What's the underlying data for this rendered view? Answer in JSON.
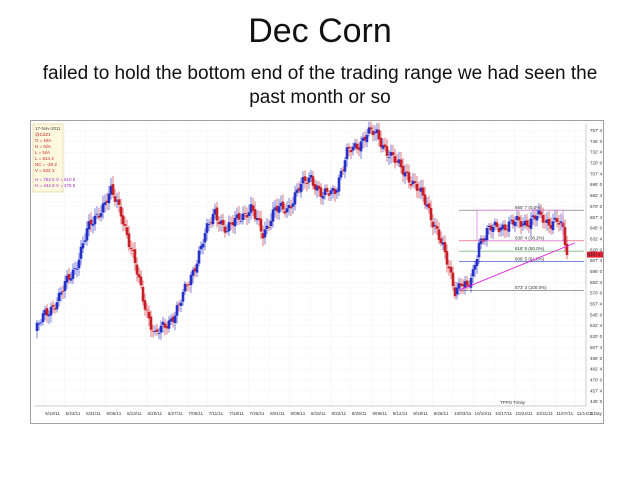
{
  "slide": {
    "title": "Dec Corn",
    "subtitle": "failed to hold the bottom end of the trading range we had seen the past month or so"
  },
  "colors": {
    "up": "#2430c8",
    "down": "#c81e28",
    "range_box": "#d060d0",
    "trendline": "#e020e0",
    "fib_line": "#e04060",
    "grid": "#d8d8d8",
    "price_tag": "#e02030"
  },
  "info_box": {
    "lines": [
      "17-Nov-2011",
      "@C2Z1",
      "O = N/A",
      "H = N/A",
      "L = N/A",
      "L = 614 4",
      "NC = -20 2",
      "V = 522 1"
    ],
    "lines2": [
      "H = 763 5  V = 610 5",
      "H = 444 9  V = 476 5"
    ]
  },
  "fib_labels": [
    "665' 7 (0.0%)",
    "630' 4 (38.2%)",
    "618' 5 (50.0%)",
    "606' 5 (61.8%)",
    "573' 3 (100.0%)"
  ],
  "price_tag": "614' 4",
  "footer_note": "TFPN Trinity",
  "chart_data": {
    "type": "candlestick",
    "symbol": "Dec Corn",
    "y_ticks": [
      "757' 4",
      "745' 0",
      "732' 4",
      "720' 0",
      "707' 4",
      "695' 0",
      "682' 4",
      "670' 0",
      "657' 4",
      "645' 0",
      "632' 4",
      "620' 0",
      "607' 4",
      "595' 0",
      "582' 4",
      "570' 0",
      "557' 4",
      "545' 0",
      "532' 4",
      "520' 0",
      "507' 4",
      "495' 0",
      "482' 4",
      "470' 0",
      "457' 4",
      "445' 0"
    ],
    "x_ticks": [
      "5/10/11",
      "5/23/11",
      "5/31/11",
      "6/06/11",
      "6/13/11",
      "6/20/11",
      "6/27/11",
      "7/05/11",
      "7/11/11",
      "7/18/11",
      "7/25/11",
      "8/01/11",
      "8/08/11",
      "8/15/11",
      "8/22/11",
      "8/29/11",
      "9/06/11",
      "9/12/11",
      "9/19/11",
      "9/26/11",
      "10/03/11",
      "10/10/11",
      "10/17/11",
      "10/24/11",
      "10/31/11",
      "11/07/11",
      "11/14/11"
    ],
    "y_range": [
      440,
      765
    ],
    "close_anchors": [
      [
        0,
        525
      ],
      [
        5,
        545
      ],
      [
        12,
        565
      ],
      [
        20,
        600
      ],
      [
        26,
        640
      ],
      [
        32,
        665
      ],
      [
        38,
        685
      ],
      [
        43,
        665
      ],
      [
        48,
        620
      ],
      [
        54,
        565
      ],
      [
        60,
        520
      ],
      [
        66,
        535
      ],
      [
        72,
        555
      ],
      [
        78,
        590
      ],
      [
        84,
        630
      ],
      [
        90,
        665
      ],
      [
        96,
        640
      ],
      [
        102,
        660
      ],
      [
        108,
        665
      ],
      [
        114,
        640
      ],
      [
        120,
        665
      ],
      [
        126,
        668
      ],
      [
        132,
        690
      ],
      [
        138,
        705
      ],
      [
        144,
        680
      ],
      [
        150,
        690
      ],
      [
        156,
        730
      ],
      [
        161,
        740
      ],
      [
        166,
        755
      ],
      [
        171,
        752
      ],
      [
        176,
        735
      ],
      [
        181,
        718
      ],
      [
        186,
        708
      ],
      [
        191,
        690
      ],
      [
        196,
        672
      ],
      [
        201,
        642
      ],
      [
        206,
        605
      ],
      [
        210,
        575
      ],
      [
        213,
        583
      ],
      [
        216,
        573
      ],
      [
        219,
        592
      ],
      [
        222,
        630
      ],
      [
        227,
        642
      ],
      [
        233,
        648
      ],
      [
        239,
        650
      ],
      [
        245,
        652
      ],
      [
        251,
        658
      ],
      [
        256,
        652
      ],
      [
        261,
        655
      ],
      [
        264,
        640
      ],
      [
        266,
        614
      ]
    ],
    "fib_levels": [
      {
        "label": "665' 7 (0.0%)",
        "value": 665.7
      },
      {
        "label": "630' 4 (38.2%)",
        "value": 630.4
      },
      {
        "label": "618' 5 (50.0%)",
        "value": 618.5
      },
      {
        "label": "606' 5 (61.8%)",
        "value": 606.5
      },
      {
        "label": "573' 3 (100.0%)",
        "value": 573.3
      }
    ],
    "last_price": "614' 4",
    "range_box": {
      "x_start": 221,
      "x_end": 264,
      "top": 665.7,
      "bottom": 630.4
    },
    "trendline": {
      "x1": 212,
      "y1": 573.3,
      "x2": 270,
      "y2": 628
    },
    "grid": true,
    "timeframe_label": "1 Day"
  }
}
